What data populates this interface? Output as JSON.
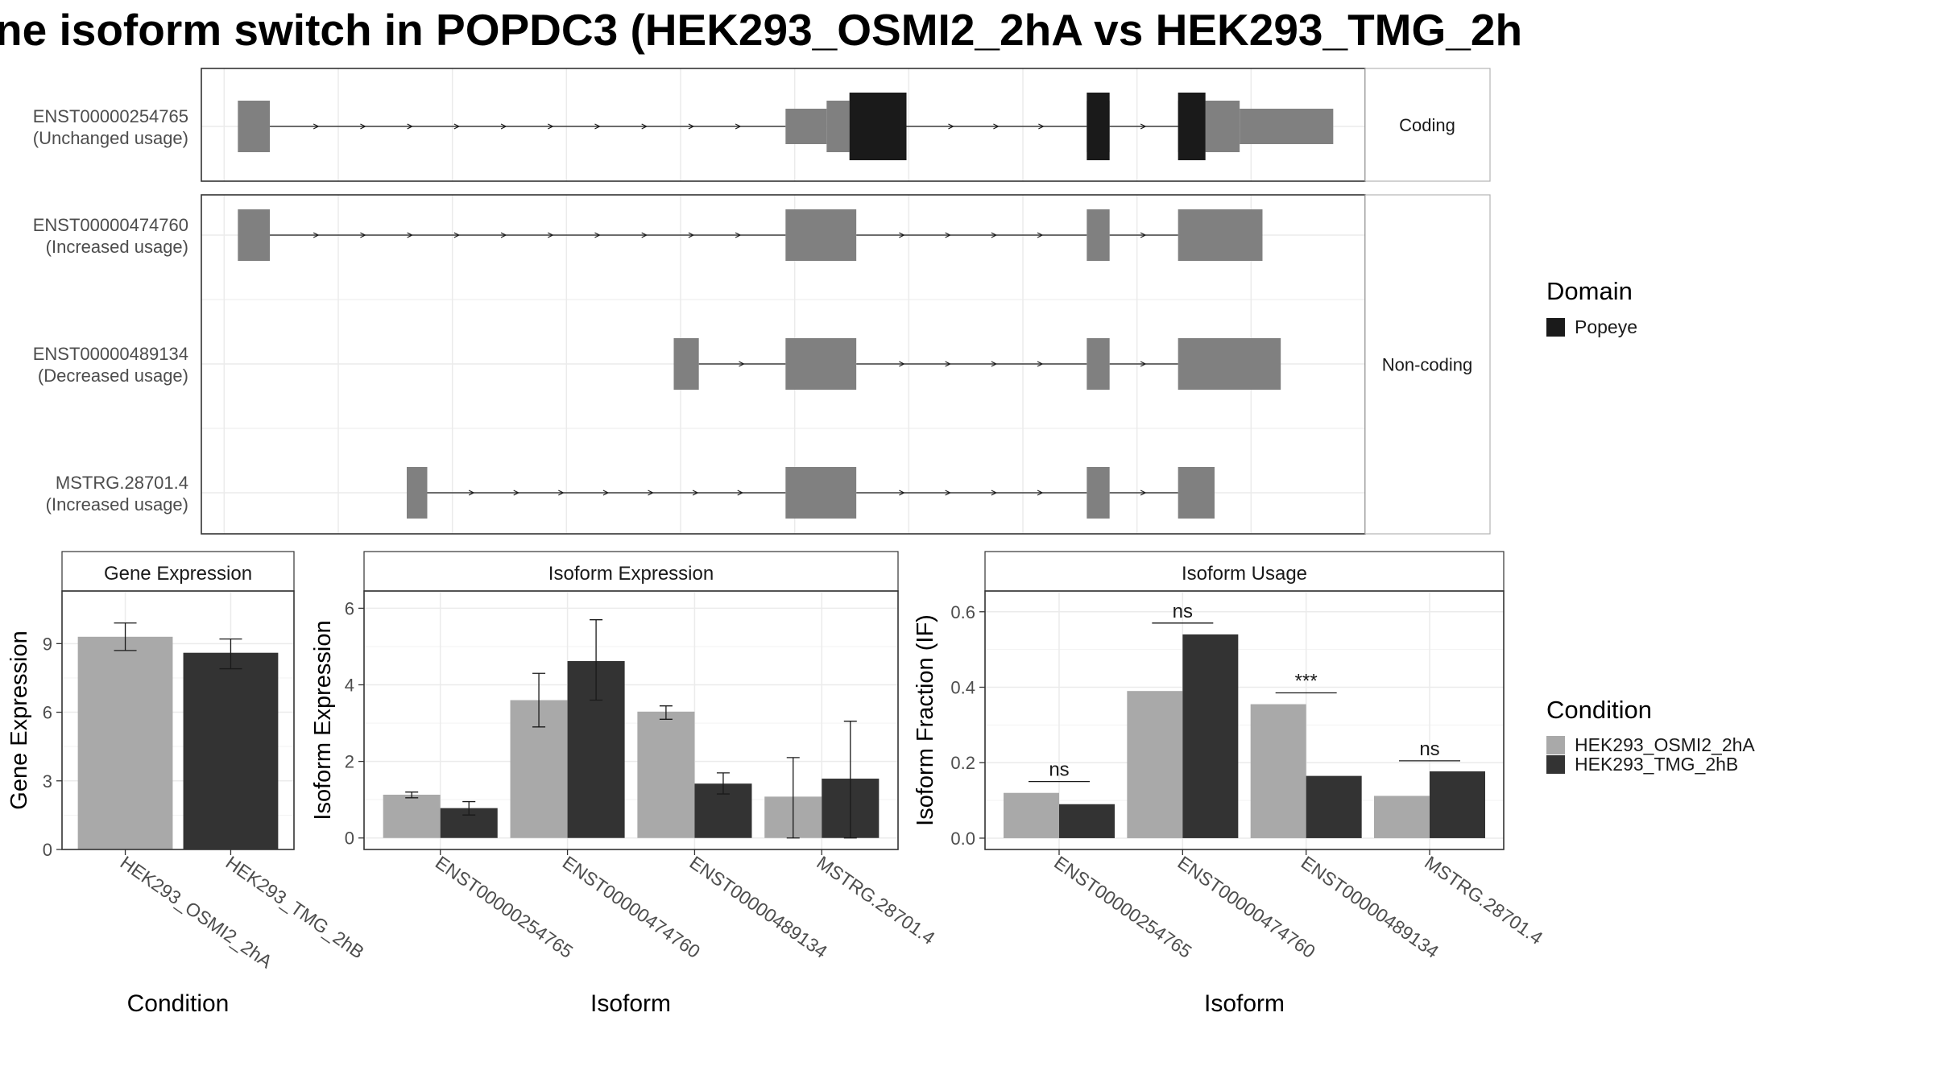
{
  "title": "ne isoform switch in POPDC3 (HEK293_OSMI2_2hA vs HEK293_TMG_2h",
  "colors": {
    "utr": "#808080",
    "domain": "#1a1a1a",
    "condition_a": "#a9a9a9",
    "condition_b": "#333333",
    "grid": "#ebebeb",
    "panel_border": "#333333",
    "strip_border": "#b3b3b3"
  },
  "transcripts": {
    "strips": [
      "Coding",
      "Non-coding"
    ],
    "rows": [
      {
        "id": "ENST00000254765",
        "note": "(Unchanged usage)",
        "group": "Coding",
        "exons": [
          [
            0.3,
            1.0
          ],
          [
            12.3,
            13.2
          ],
          [
            13.2,
            13.7
          ],
          [
            18.9,
            19.4
          ],
          [
            20.9,
            21.5
          ],
          [
            21.5,
            22.25
          ],
          [
            22.25,
            24.3
          ]
        ],
        "domains": [
          [
            13.7,
            14.95
          ],
          [
            18.9,
            19.4
          ],
          [
            20.9,
            21.5
          ]
        ],
        "thin": [
          [
            12.3,
            13.2
          ],
          [
            22.25,
            24.3
          ]
        ],
        "introns": [
          [
            1.0,
            12.3
          ],
          [
            14.95,
            18.9
          ],
          [
            19.4,
            20.9
          ]
        ]
      },
      {
        "id": "ENST00000474760",
        "note": "(Increased usage)",
        "group": "Non-coding",
        "exons": [
          [
            0.3,
            1.0
          ],
          [
            12.3,
            13.85
          ],
          [
            18.9,
            19.4
          ],
          [
            20.9,
            22.75
          ]
        ],
        "domains": [],
        "thin": [],
        "introns": [
          [
            1.0,
            12.3
          ],
          [
            13.85,
            18.9
          ],
          [
            19.4,
            20.9
          ]
        ]
      },
      {
        "id": "ENST00000489134",
        "note": "(Decreased usage)",
        "group": "Non-coding",
        "exons": [
          [
            9.85,
            10.4
          ],
          [
            12.3,
            13.85
          ],
          [
            18.9,
            19.4
          ],
          [
            20.9,
            23.15
          ]
        ],
        "domains": [],
        "thin": [],
        "introns": [
          [
            10.4,
            12.3
          ],
          [
            13.85,
            18.9
          ],
          [
            19.4,
            20.9
          ]
        ]
      },
      {
        "id": "MSTRG.28701.4",
        "note": "(Increased usage)",
        "group": "Non-coding",
        "exons": [
          [
            4.0,
            4.45
          ],
          [
            12.3,
            13.85
          ],
          [
            18.9,
            19.4
          ],
          [
            20.9,
            21.7
          ]
        ],
        "domains": [],
        "thin": [],
        "introns": [
          [
            4.45,
            12.3
          ],
          [
            13.85,
            18.9
          ],
          [
            19.4,
            20.9
          ]
        ]
      }
    ]
  },
  "legend_domain": {
    "title": "Domain",
    "items": [
      "Popeye"
    ]
  },
  "legend_condition": {
    "title": "Condition",
    "items": [
      "HEK293_OSMI2_2hA",
      "HEK293_TMG_2hB"
    ]
  },
  "chart_data": [
    {
      "type": "bar",
      "title": "Gene Expression",
      "xlabel": "Condition",
      "ylabel": "Gene Expression",
      "categories": [
        "HEK293_OSMI2_2hA",
        "HEK293_TMG_2hB"
      ],
      "values": [
        9.3,
        8.6
      ],
      "err": [
        [
          8.7,
          9.9
        ],
        [
          7.9,
          9.2
        ]
      ],
      "yticks": [
        0,
        3,
        6,
        9
      ],
      "ylim": [
        0,
        11.3
      ]
    },
    {
      "type": "bar",
      "title": "Isoform Expression",
      "xlabel": "Isoform",
      "ylabel": "Isoform Expression",
      "categories": [
        "ENST00000254765",
        "ENST00000474760",
        "ENST00000489134",
        "MSTRG.28701.4"
      ],
      "series": [
        {
          "name": "HEK293_OSMI2_2hA",
          "values": [
            1.13,
            3.6,
            3.3,
            1.08
          ],
          "err": [
            [
              1.05,
              1.2
            ],
            [
              2.9,
              4.3
            ],
            [
              3.1,
              3.45
            ],
            [
              0.0,
              2.1
            ]
          ]
        },
        {
          "name": "HEK293_TMG_2hB",
          "values": [
            0.78,
            4.62,
            1.42,
            1.55
          ],
          "err": [
            [
              0.6,
              0.95
            ],
            [
              3.6,
              5.7
            ],
            [
              1.15,
              1.7
            ],
            [
              0.0,
              3.05
            ]
          ]
        }
      ],
      "yticks": [
        0,
        2,
        4,
        6
      ],
      "ylim": [
        -0.3,
        6.45
      ]
    },
    {
      "type": "bar",
      "title": "Isoform Usage",
      "xlabel": "Isoform",
      "ylabel": "Isoform Fraction (IF)",
      "categories": [
        "ENST00000254765",
        "ENST00000474760",
        "ENST00000489134",
        "MSTRG.28701.4"
      ],
      "series": [
        {
          "name": "HEK293_OSMI2_2hA",
          "values": [
            0.12,
            0.39,
            0.355,
            0.112
          ]
        },
        {
          "name": "HEK293_TMG_2hB",
          "values": [
            0.09,
            0.54,
            0.165,
            0.177
          ]
        }
      ],
      "significance": [
        "ns",
        "ns",
        "***",
        "ns"
      ],
      "sig_y": [
        0.15,
        0.57,
        0.385,
        0.205
      ],
      "yticks": [
        0.0,
        0.2,
        0.4,
        0.6
      ],
      "ytick_labels": [
        "0.0",
        "0.2",
        "0.4",
        "0.6"
      ],
      "ylim": [
        -0.03,
        0.655
      ]
    }
  ]
}
